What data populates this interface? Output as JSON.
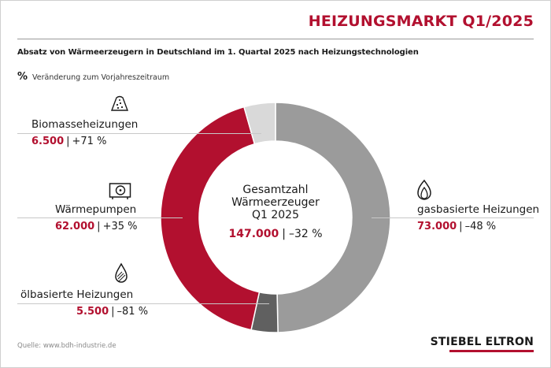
{
  "header": {
    "title": "HEIZUNGSMARKT Q1/2025",
    "subtitle": "Absatz von Wärmeerzeugern in Deutschland im 1. Quartal 2025 nach Heizungstechnologien"
  },
  "legend": {
    "symbol": "%",
    "text": "Veränderung zum Vorjahreszeitraum"
  },
  "chart_data": {
    "type": "pie",
    "title": "HEIZUNGSMARKT Q1/2025",
    "subtitle": "Absatz von Wärmeerzeugern in Deutschland im 1. Quartal 2025 nach Heizungstechnologien",
    "center_label": [
      "Gesamtzahl",
      "Wärmeerzeuger",
      "Q1 2025"
    ],
    "total": {
      "value": 147000,
      "label": "147.000",
      "change": "–32 %"
    },
    "categories": [
      "gasbasierte Heizungen",
      "ölbasierte Heizungen",
      "Wärmepumpen",
      "Biomasseheizungen"
    ],
    "values": [
      73000,
      5500,
      62000,
      6500
    ],
    "slices": [
      {
        "name": "gasbasierte Heizungen",
        "value": 73000,
        "label": "73.000",
        "change": "–48 %",
        "color": "#9b9b9b",
        "icon": "flame-icon"
      },
      {
        "name": "ölbasierte Heizungen",
        "value": 5500,
        "label": "5.500",
        "change": "–81 %",
        "color": "#606060",
        "icon": "oil-drop-icon"
      },
      {
        "name": "Wärmepumpen",
        "value": 62000,
        "label": "62.000",
        "change": "+35 %",
        "color": "#b2102f",
        "icon": "heat-pump-icon"
      },
      {
        "name": "Biomasseheizungen",
        "value": 6500,
        "label": "6.500",
        "change": "+71 %",
        "color": "#d9d9d9",
        "icon": "wood-pile-icon"
      }
    ],
    "donut": true,
    "start_angle": "top (12 o'clock), clockwise",
    "legend_placement": "labels around the ring"
  },
  "footer": {
    "source": "Quelle: www.bdh-industrie.de",
    "brand": "STIEBEL ELTRON"
  },
  "colors": {
    "accent": "#b2102f",
    "gas": "#9b9b9b",
    "oil": "#606060",
    "biomass": "#d9d9d9"
  }
}
